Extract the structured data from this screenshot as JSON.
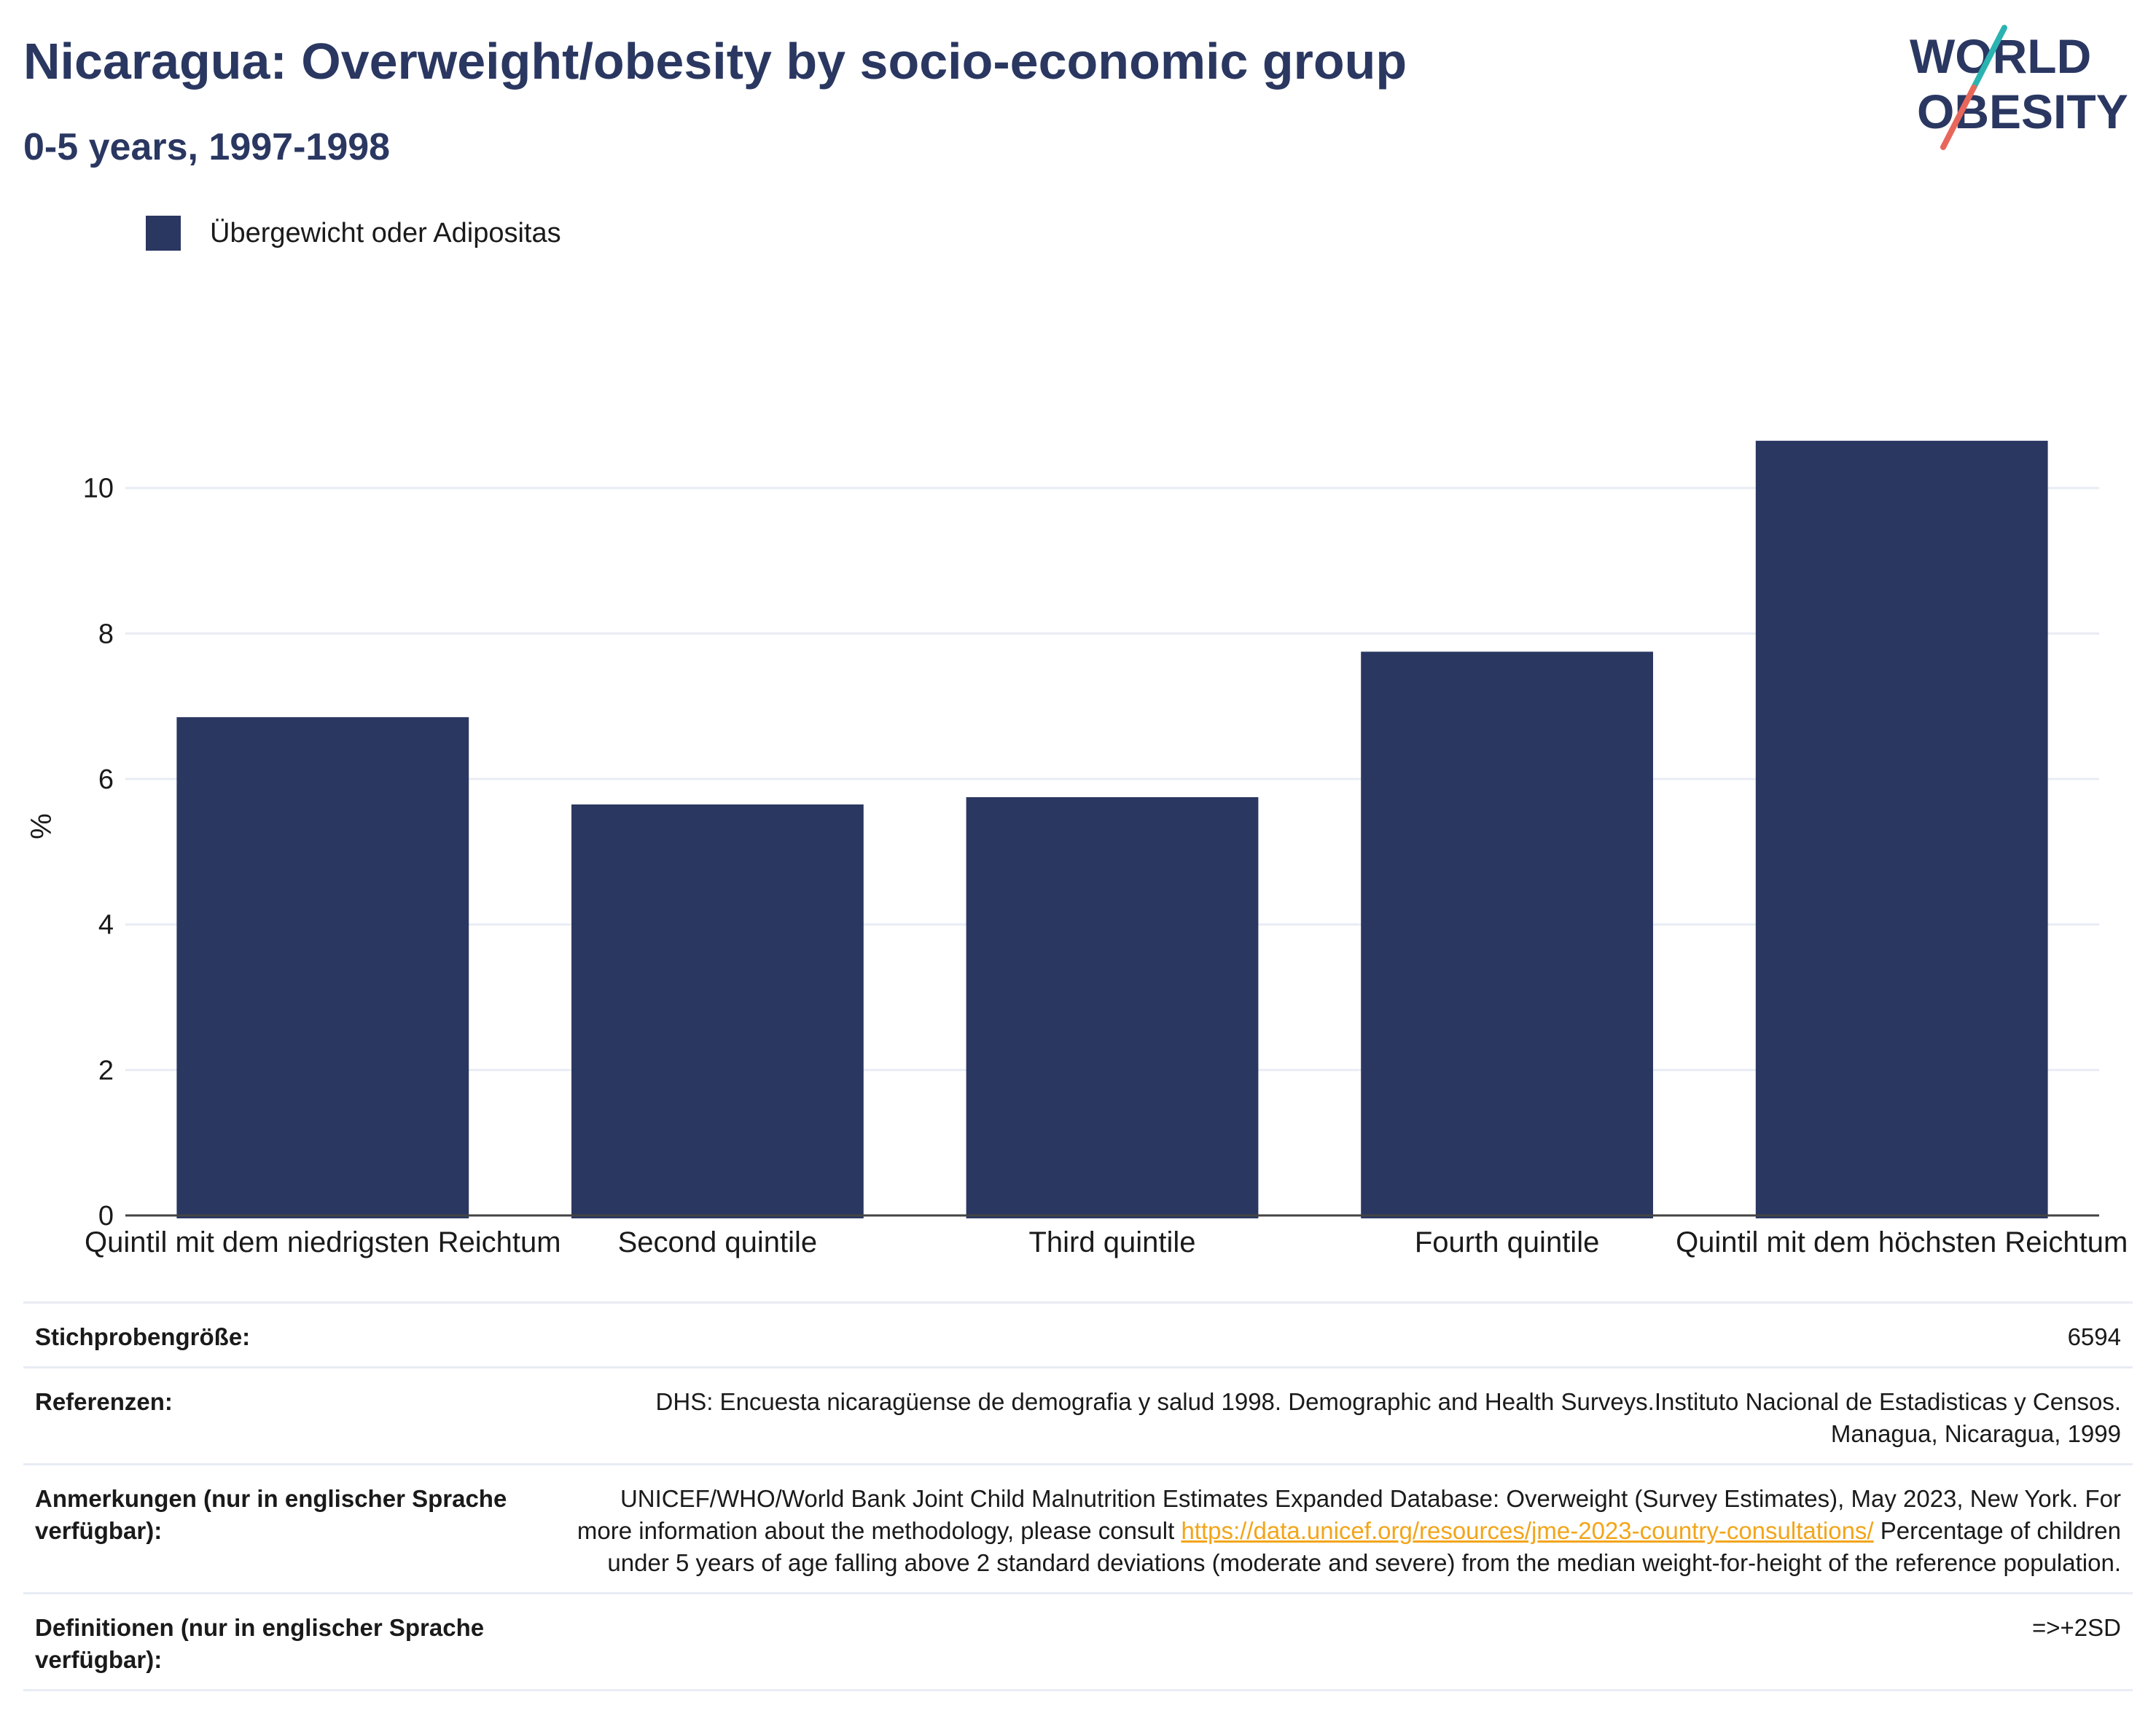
{
  "header": {
    "title": "Nicaragua: Overweight/obesity by socio-economic group",
    "subtitle": "0-5 years, 1997-1998"
  },
  "logo": {
    "line1": "WORLD",
    "line2": "OBESITY"
  },
  "colors": {
    "bar": "#2a3761",
    "title": "#2a3761",
    "grid": "#e8ecf4",
    "link": "#f2a51a",
    "logo_teal": "#2bb3b1",
    "logo_coral": "#e8675b"
  },
  "chart_data": {
    "type": "bar",
    "categories": [
      "Quintil mit dem niedrigsten Reichtum",
      "Second quintile",
      "Third quintile",
      "Fourth quintile",
      "Quintil mit dem höchsten Reichtum"
    ],
    "series": [
      {
        "name": "Übergewicht oder Adipositas",
        "values": [
          6.85,
          5.65,
          5.75,
          7.75,
          10.65
        ]
      }
    ],
    "ylabel": "%",
    "xlabel": "",
    "ylim": [
      0,
      11.5
    ],
    "yticks": [
      0,
      2,
      4,
      6,
      8,
      10
    ],
    "grid": true,
    "legend": "top-left"
  },
  "meta": {
    "rows": [
      {
        "label": "Stichprobengröße:",
        "value": "6594"
      },
      {
        "label": "Referenzen:",
        "value": "DHS: Encuesta nicaragüense de demografia y salud 1998. Demographic and Health Surveys.Instituto Nacional de Estadisticas y Censos. Managua, Nicaragua, 1999"
      },
      {
        "label": "Anmerkungen (nur in englischer Sprache verfügbar):",
        "value_before": "UNICEF/WHO/World Bank Joint Child Malnutrition Estimates Expanded Database: Overweight (Survey Estimates), May 2023, New York. For more information about the methodology, please consult ",
        "link": "https://data.unicef.org/resources/jme-2023-country-consultations/",
        "value_after": " Percentage of children under 5 years of age falling above 2 standard deviations (moderate and severe) from the median weight-for-height of the reference population."
      },
      {
        "label": "Definitionen (nur in englischer Sprache verfügbar):",
        "value": "=>+2SD"
      }
    ]
  }
}
